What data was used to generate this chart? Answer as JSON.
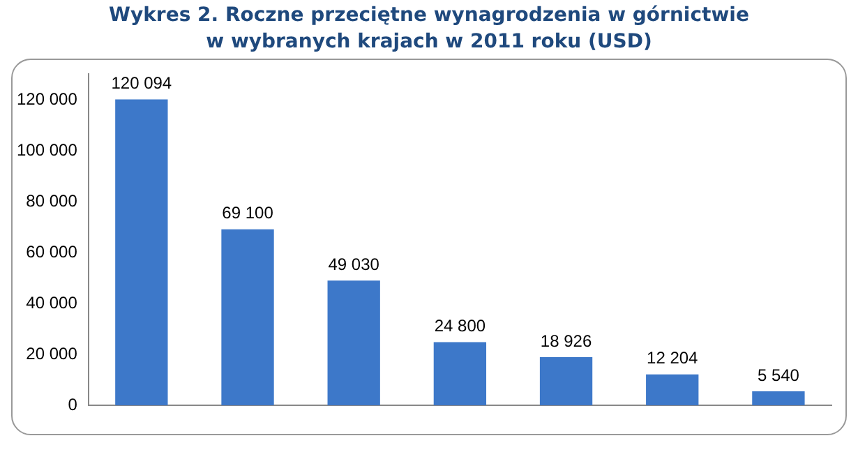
{
  "chart_data": {
    "type": "bar",
    "title": "Wykres 2. Roczne przeciętne wynagrodzenia w górnictwie\nw wybranych krajach w 2011 roku (USD)",
    "categories": [
      null,
      null,
      null,
      null,
      null,
      null,
      null
    ],
    "values": [
      120094,
      69100,
      49030,
      24800,
      18926,
      12204,
      5540
    ],
    "value_labels": [
      "120 094",
      "69 100",
      "49 030",
      "24 800",
      "18 926",
      "12 204",
      "5 540"
    ],
    "color": "#3d78c9",
    "ylim": [
      0,
      130000
    ],
    "yticks": [
      {
        "value": 0,
        "label": "0"
      },
      {
        "value": 20000,
        "label": "20 000"
      },
      {
        "value": 40000,
        "label": "40 000"
      },
      {
        "value": 60000,
        "label": "60 000"
      },
      {
        "value": 80000,
        "label": "80 000"
      },
      {
        "value": 100000,
        "label": "100 000"
      },
      {
        "value": 120000,
        "label": "120 000"
      }
    ],
    "grid": false,
    "legend": false
  }
}
